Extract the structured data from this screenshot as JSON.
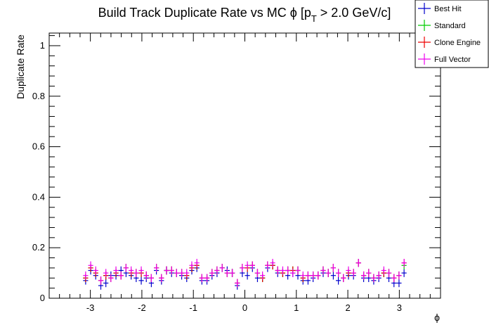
{
  "chart_data": {
    "type": "scatter",
    "title": "Build Track Duplicate Rate vs MC ϕ [p_T > 2.0 GeV/c]",
    "title_parts": {
      "prefix": "Build Track Duplicate Rate vs MC ϕ [p",
      "subscript": "T",
      "suffix": " > 2.0 GeV/c]"
    },
    "xlabel": "ϕ",
    "ylabel": "Duplicate Rate",
    "xlim": [
      -3.8,
      3.8
    ],
    "ylim": [
      0,
      1.05
    ],
    "x_ticks": [
      -3,
      -2,
      -1,
      0,
      1,
      2,
      3
    ],
    "x_tick_labels": [
      "-3",
      "-2",
      "-1",
      "0",
      "1",
      "2",
      "3"
    ],
    "y_ticks": [
      0,
      0.2,
      0.4,
      0.6,
      0.8,
      1
    ],
    "y_tick_labels": [
      "0",
      "0.2",
      "0.4",
      "0.6",
      "0.8",
      "1"
    ],
    "grid": false,
    "legend_position": "top-right",
    "bin_width": 0.0983,
    "x": [
      -3.092,
      -2.994,
      -2.896,
      -2.797,
      -2.699,
      -2.601,
      -2.503,
      -2.405,
      -2.307,
      -2.208,
      -2.11,
      -2.012,
      -1.914,
      -1.816,
      -1.718,
      -1.619,
      -1.521,
      -1.423,
      -1.325,
      -1.227,
      -1.129,
      -1.03,
      -0.932,
      -0.834,
      -0.736,
      -0.638,
      -0.54,
      -0.442,
      -0.343,
      -0.245,
      -0.147,
      -0.049,
      0.049,
      0.147,
      0.245,
      0.343,
      0.442,
      0.54,
      0.638,
      0.736,
      0.834,
      0.932,
      1.03,
      1.129,
      1.227,
      1.325,
      1.423,
      1.521,
      1.619,
      1.718,
      1.816,
      1.914,
      2.012,
      2.11,
      2.208,
      2.307,
      2.405,
      2.503,
      2.601,
      2.699,
      2.797,
      2.896,
      2.994,
      3.092
    ],
    "series": [
      {
        "name": "Best Hit",
        "color": "#0000cc",
        "values": [
          0.07,
          0.11,
          0.09,
          0.05,
          0.06,
          0.09,
          0.09,
          0.11,
          0.1,
          0.09,
          0.08,
          0.07,
          0.08,
          0.06,
          0.11,
          0.07,
          0.11,
          0.1,
          0.1,
          0.09,
          0.08,
          0.11,
          0.12,
          0.07,
          0.07,
          0.09,
          0.1,
          0.12,
          0.11,
          0.1,
          0.05,
          0.1,
          0.09,
          0.12,
          0.08,
          0.08,
          0.12,
          0.13,
          0.1,
          0.1,
          0.09,
          0.1,
          0.09,
          0.07,
          0.07,
          0.08,
          0.09,
          0.1,
          0.1,
          0.09,
          0.07,
          0.08,
          0.09,
          0.09,
          0.14,
          0.08,
          0.08,
          0.07,
          0.08,
          0.1,
          0.08,
          0.06,
          0.06,
          0.1
        ]
      },
      {
        "name": "Standard",
        "color": "#00cc00",
        "values": [
          0.08,
          0.12,
          0.1,
          0.07,
          0.09,
          0.08,
          0.1,
          0.09,
          0.12,
          0.1,
          0.1,
          0.1,
          0.09,
          0.08,
          0.12,
          0.08,
          0.11,
          0.11,
          0.1,
          0.1,
          0.09,
          0.12,
          0.13,
          0.08,
          0.08,
          0.1,
          0.11,
          0.12,
          0.1,
          0.1,
          0.06,
          0.12,
          0.12,
          0.13,
          0.1,
          0.08,
          0.13,
          0.13,
          0.11,
          0.1,
          0.11,
          0.11,
          0.11,
          0.08,
          0.09,
          0.09,
          0.09,
          0.11,
          0.1,
          0.12,
          0.1,
          0.08,
          0.1,
          0.1,
          0.14,
          0.09,
          0.1,
          0.08,
          0.09,
          0.1,
          0.1,
          0.08,
          0.09,
          0.13
        ]
      },
      {
        "name": "Clone Engine",
        "color": "#ee0000",
        "values": [
          0.08,
          0.12,
          0.1,
          0.07,
          0.09,
          0.08,
          0.1,
          0.09,
          0.12,
          0.1,
          0.1,
          0.1,
          0.09,
          0.08,
          0.12,
          0.08,
          0.11,
          0.11,
          0.1,
          0.1,
          0.09,
          0.12,
          0.13,
          0.08,
          0.08,
          0.1,
          0.11,
          0.12,
          0.1,
          0.1,
          0.06,
          0.12,
          0.12,
          0.13,
          0.1,
          0.08,
          0.13,
          0.13,
          0.11,
          0.1,
          0.11,
          0.11,
          0.11,
          0.08,
          0.09,
          0.09,
          0.09,
          0.11,
          0.1,
          0.12,
          0.1,
          0.08,
          0.1,
          0.1,
          0.14,
          0.09,
          0.1,
          0.08,
          0.09,
          0.1,
          0.1,
          0.08,
          0.09,
          0.14
        ]
      },
      {
        "name": "Full Vector",
        "color": "#ee00ee",
        "values": [
          0.09,
          0.13,
          0.11,
          0.07,
          0.1,
          0.08,
          0.11,
          0.09,
          0.12,
          0.11,
          0.1,
          0.11,
          0.09,
          0.08,
          0.12,
          0.08,
          0.11,
          0.11,
          0.1,
          0.1,
          0.1,
          0.13,
          0.14,
          0.08,
          0.08,
          0.1,
          0.11,
          0.12,
          0.1,
          0.1,
          0.06,
          0.12,
          0.13,
          0.13,
          0.1,
          0.09,
          0.13,
          0.14,
          0.11,
          0.11,
          0.11,
          0.1,
          0.11,
          0.09,
          0.09,
          0.09,
          0.09,
          0.11,
          0.1,
          0.12,
          0.1,
          0.08,
          0.11,
          0.1,
          0.14,
          0.09,
          0.1,
          0.08,
          0.09,
          0.11,
          0.1,
          0.08,
          0.09,
          0.14
        ]
      }
    ],
    "y_error": 0.016
  }
}
